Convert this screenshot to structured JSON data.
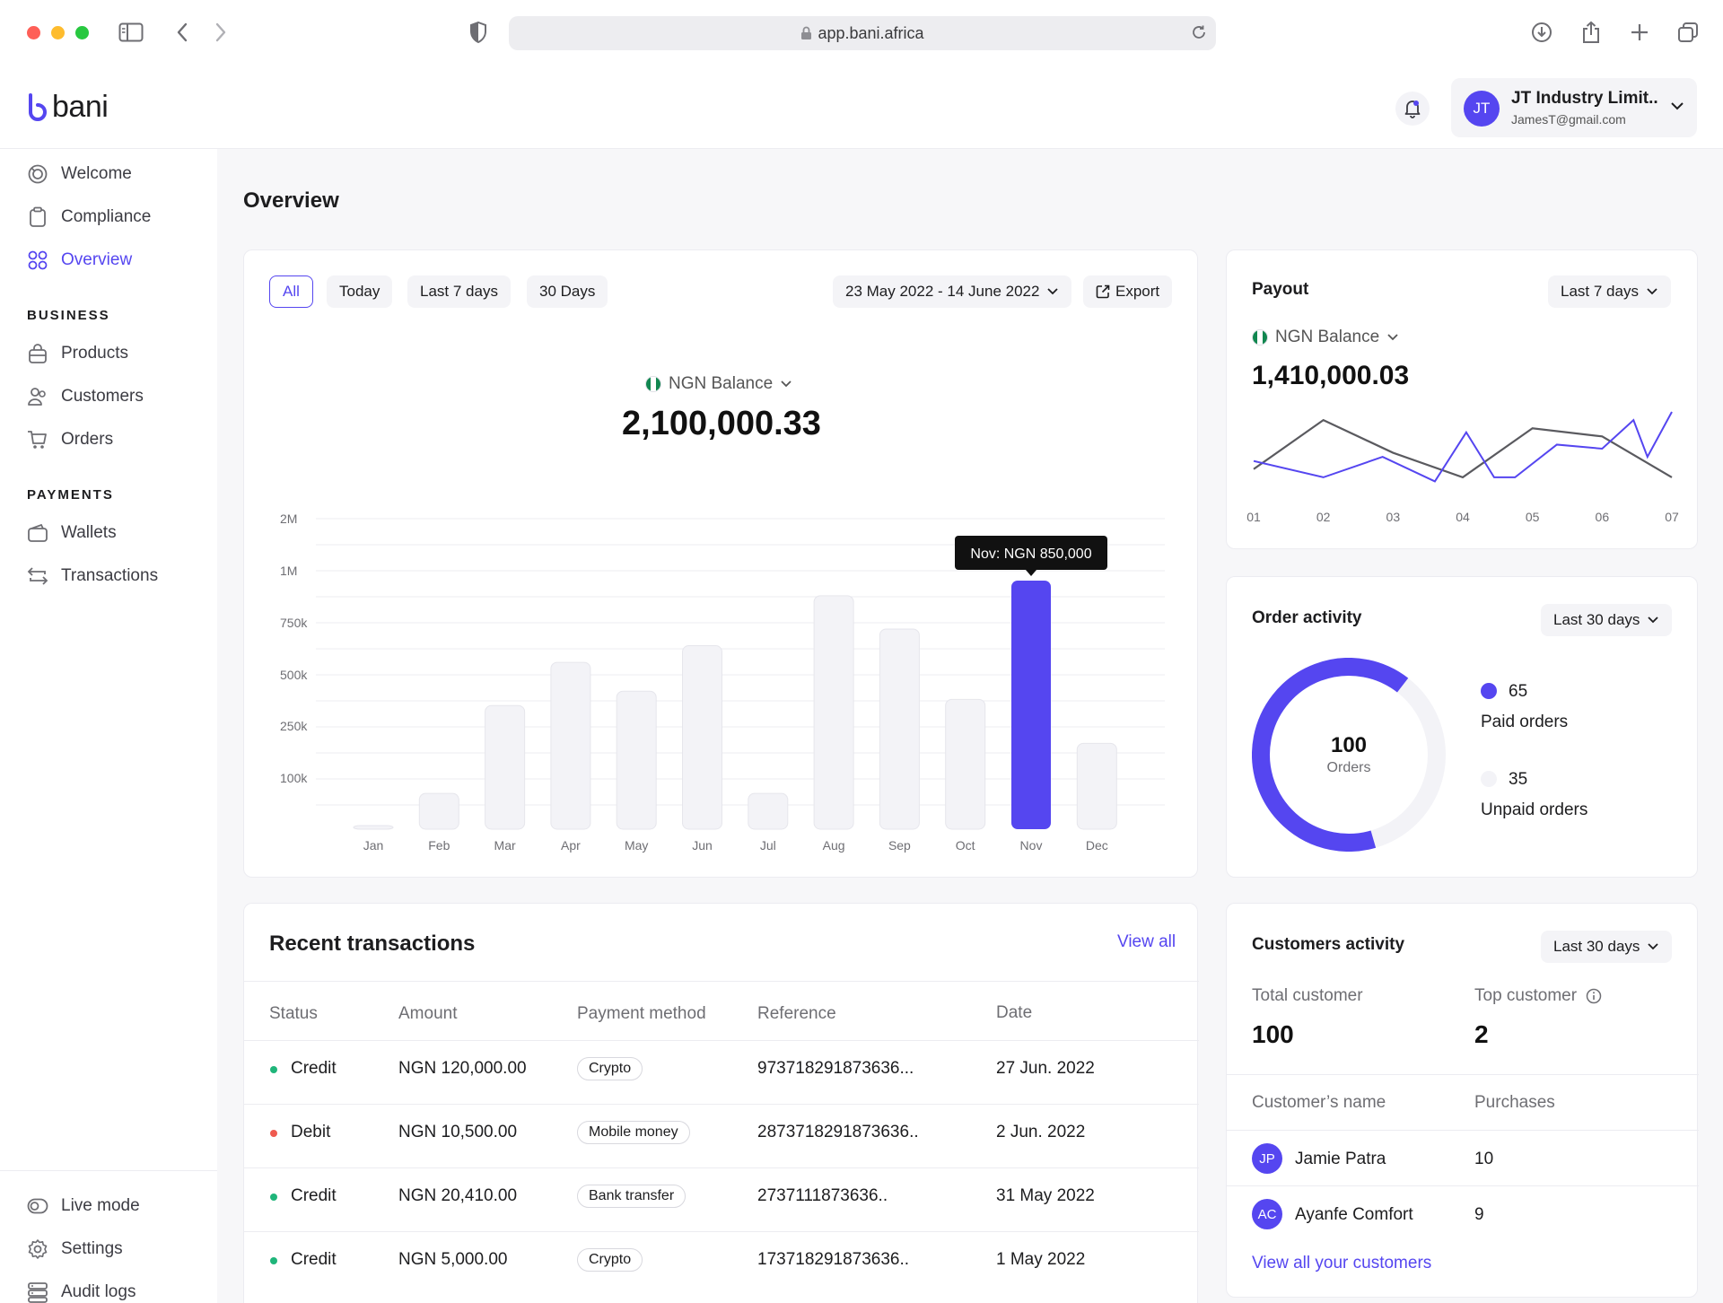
{
  "browser": {
    "url": "app.bani.africa"
  },
  "brand": {
    "name": "bani",
    "accent": "#5546f0"
  },
  "account": {
    "initials": "JT",
    "name": "JT Industry Limit..",
    "email": "JamesT@gmail.com"
  },
  "sidebar": {
    "top_items": [
      {
        "label": "Welcome",
        "icon": "welcome-icon"
      },
      {
        "label": "Compliance",
        "icon": "clipboard-icon"
      },
      {
        "label": "Overview",
        "icon": "grid-icon",
        "active": true
      }
    ],
    "business_heading": "BUSINESS",
    "business_items": [
      {
        "label": "Products",
        "icon": "bag-icon"
      },
      {
        "label": "Customers",
        "icon": "users-icon"
      },
      {
        "label": "Orders",
        "icon": "cart-icon"
      }
    ],
    "payments_heading": "PAYMENTS",
    "payments_items": [
      {
        "label": "Wallets",
        "icon": "wallet-icon"
      },
      {
        "label": "Transactions",
        "icon": "swap-icon"
      }
    ],
    "bottom_items": [
      {
        "label": "Live mode",
        "icon": "toggle-icon"
      },
      {
        "label": "Settings",
        "icon": "gear-icon"
      },
      {
        "label": "Audit logs",
        "icon": "server-icon"
      }
    ]
  },
  "main": {
    "title": "Overview"
  },
  "overview_card": {
    "filters": [
      "All",
      "Today",
      "Last 7 days",
      "30 Days"
    ],
    "selected_filter": "All",
    "date_range": "23 May 2022 - 14 June 2022",
    "export_label": "Export",
    "balance_label": "NGN Balance",
    "balance_value": "2,100,000.33",
    "tooltip": "Nov: NGN 850,000"
  },
  "chart_data": {
    "type": "bar",
    "categories": [
      "Jan",
      "Feb",
      "Mar",
      "Apr",
      "May",
      "Jun",
      "Jul",
      "Aug",
      "Sep",
      "Oct",
      "Nov",
      "Dec"
    ],
    "values": [
      5000,
      70000,
      350000,
      560000,
      420000,
      640000,
      70000,
      880000,
      720000,
      380000,
      850000,
      200000
    ],
    "highlight_index": 10,
    "y_tick_labels": [
      "2M",
      "1M",
      "750k",
      "500k",
      "250k",
      "100k"
    ],
    "highlight_color": "#5546f0",
    "bar_color": "#f3f3f7",
    "grid": true
  },
  "payout": {
    "title": "Payout",
    "period": "Last 7 days",
    "balance_label": "NGN Balance",
    "balance_value": "1,410,000.03",
    "x_labels": [
      "01",
      "02",
      "03",
      "04",
      "05",
      "06",
      "07"
    ],
    "series_gray": [
      2,
      8,
      4,
      1,
      7,
      6,
      1
    ],
    "series_purple": [
      3,
      1,
      3.5,
      6.5,
      1,
      3.5,
      9
    ],
    "series_purple_x": [
      0,
      1,
      1.8,
      2.5,
      3.2,
      3.6,
      4.0,
      4.6,
      5.0,
      5.7,
      6.0
    ]
  },
  "order_activity": {
    "title": "Order activity",
    "period": "Last 30 days",
    "total": "100",
    "total_label": "Orders",
    "paid_count": "65",
    "paid_label": "Paid orders",
    "unpaid_count": "35",
    "unpaid_label": "Unpaid orders",
    "paid_fraction": 0.65
  },
  "transactions": {
    "title": "Recent transactions",
    "view_all": "View all",
    "headers": [
      "Status",
      "Amount",
      "Payment method",
      "Reference",
      "Date"
    ],
    "rows": [
      {
        "status": "Credit",
        "status_color": "#1fb57a",
        "amount": "NGN 120,000.00",
        "method": "Crypto",
        "reference": "973718291873636...",
        "date": "27 Jun. 2022"
      },
      {
        "status": "Debit",
        "status_color": "#ef5a4f",
        "amount": "NGN 10,500.00",
        "method": "Mobile money",
        "reference": "2873718291873636..",
        "date": "2 Jun. 2022"
      },
      {
        "status": "Credit",
        "status_color": "#1fb57a",
        "amount": "NGN 20,410.00",
        "method": "Bank transfer",
        "reference": "2737111873636..",
        "date": "31 May 2022"
      },
      {
        "status": "Credit",
        "status_color": "#1fb57a",
        "amount": "NGN 5,000.00",
        "method": "Crypto",
        "reference": "173718291873636..",
        "date": "1 May 2022"
      }
    ]
  },
  "customers": {
    "title": "Customers activity",
    "period": "Last 30 days",
    "total_label": "Total customer",
    "total_value": "100",
    "top_label": "Top customer",
    "top_value": "2",
    "col_name": "Customer’s name",
    "col_purchases": "Purchases",
    "rows": [
      {
        "initials": "JP",
        "name": "Jamie Patra",
        "purchases": "10"
      },
      {
        "initials": "AC",
        "name": "Ayanfe Comfort",
        "purchases": "9"
      }
    ],
    "view_all": "View all your customers"
  }
}
